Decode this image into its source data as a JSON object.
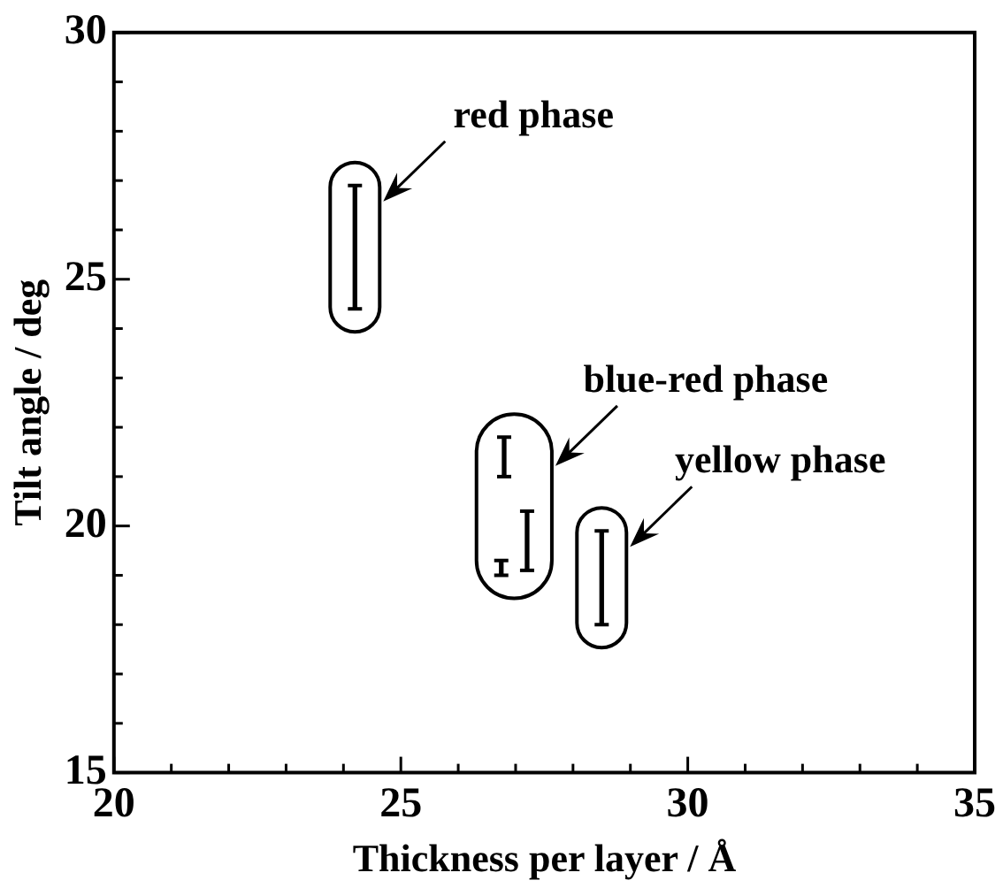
{
  "chart_data": {
    "type": "bar",
    "xlabel": "Thickness per layer / Å",
    "ylabel": "Tilt angle / deg",
    "xlim": [
      20,
      35
    ],
    "xticks": [
      20,
      {
        "value": 21,
        "label": null
      },
      {
        "value": 22,
        "label": null
      },
      {
        "value": 23,
        "label": null
      },
      {
        "value": 24,
        "label": null
      },
      25,
      {
        "value": 26,
        "label": null
      },
      {
        "value": 27,
        "label": null
      },
      {
        "value": 28,
        "label": null
      },
      {
        "value": 29,
        "label": null
      },
      30,
      {
        "value": 31,
        "label": null
      },
      {
        "value": 32,
        "label": null
      },
      {
        "value": 33,
        "label": null
      },
      {
        "value": 34,
        "label": null
      },
      35
    ],
    "ylim": [
      15,
      30
    ],
    "yticks": [
      15,
      {
        "value": 16,
        "label": null
      },
      {
        "value": 17,
        "label": null
      },
      {
        "value": 18,
        "label": null
      },
      {
        "value": 19,
        "label": null
      },
      20,
      {
        "value": 21,
        "label": null
      },
      {
        "value": 22,
        "label": null
      },
      {
        "value": 23,
        "label": null
      },
      {
        "value": 24,
        "label": null
      },
      25,
      {
        "value": 26,
        "label": null
      },
      {
        "value": 27,
        "label": null
      },
      {
        "value": 28,
        "label": null
      },
      {
        "value": 29,
        "label": null
      },
      30
    ],
    "grid": false,
    "legend": false,
    "series": [
      {
        "color": "#000000",
        "x": [
          24.2
        ],
        "base": [
          24.4
        ],
        "values": [
          2.5
        ]
      },
      {
        "color": "#000000",
        "x": [
          26.75,
          26.8,
          27.2
        ],
        "base": [
          19.0,
          21.0,
          19.1
        ],
        "values": [
          0.3,
          0.8,
          1.2
        ]
      },
      {
        "color": "#000000",
        "x": [
          28.5
        ],
        "base": [
          18.0
        ],
        "values": [
          1.9
        ]
      }
    ],
    "annotations": [
      "red phase",
      "blue-red phase",
      "yellow phase"
    ]
  }
}
